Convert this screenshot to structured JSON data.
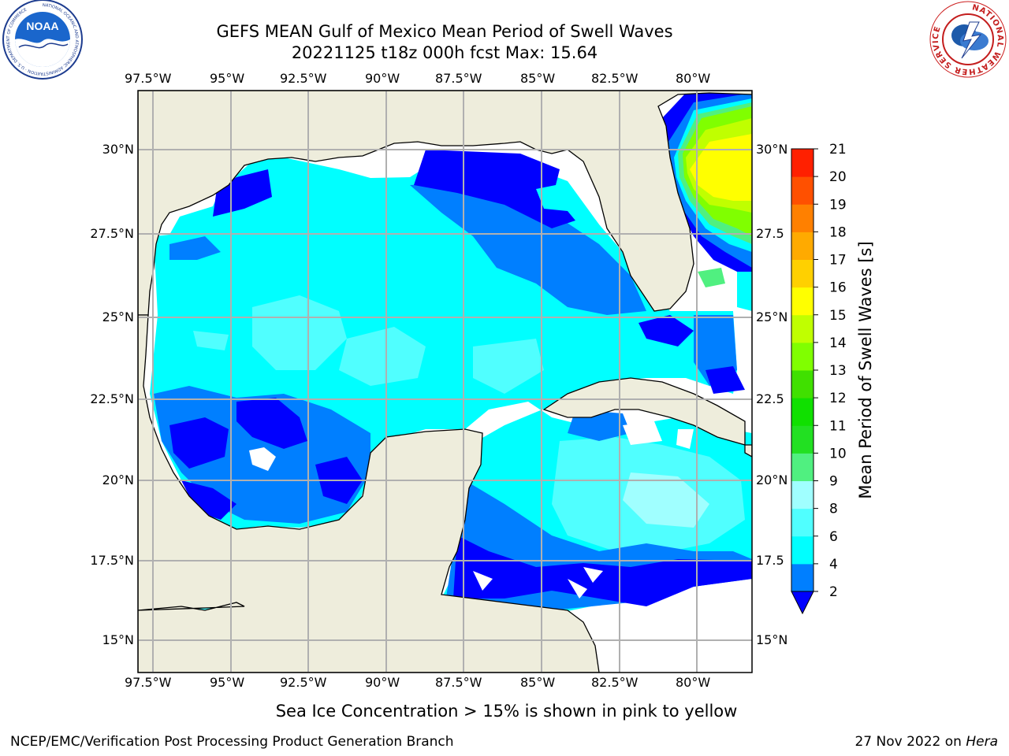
{
  "header": {
    "title_line1": "GEFS MEAN Gulf of Mexico Mean Period of Swell Waves",
    "title_line2": "20221125 t18z 000h fcst   Max: 15.64"
  },
  "logos": {
    "left": "NOAA",
    "left_ring_text": "NATIONAL OCEANIC AND ATMOSPHERIC ADMINISTRATION · U.S. DEPARTMENT OF COMMERCE",
    "right_ring_text": "NATIONAL WEATHER SERVICE"
  },
  "map": {
    "lon_labels": [
      "97.5°W",
      "95°W",
      "92.5°W",
      "90°W",
      "87.5°W",
      "85°W",
      "82.5°W",
      "80°W"
    ],
    "lat_labels_left": [
      "30°N",
      "27.5°N",
      "25°N",
      "22.5°N",
      "20°N",
      "17.5°N",
      "15°N"
    ],
    "lat_labels_right": [
      "30°N",
      "27.5",
      "25°N",
      "22.5",
      "20°N",
      "17.5",
      "15°N"
    ],
    "colors": {
      "land": "#eeeddc",
      "open_sea": "#ffffff",
      "grid": "#b0b0b0"
    }
  },
  "colorbar": {
    "label": "Mean Period of Swell Waves [s]",
    "ticks": [
      "2",
      "4",
      "6",
      "8",
      "9",
      "10",
      "11",
      "12",
      "13",
      "14",
      "15",
      "16",
      "17",
      "18",
      "19",
      "20",
      "21"
    ],
    "colors": [
      "#0000ff",
      "#007fff",
      "#00ffff",
      "#50ffff",
      "#a0ffff",
      "#50f080",
      "#22e022",
      "#10e000",
      "#40e000",
      "#80ff00",
      "#c0ff00",
      "#ffff00",
      "#ffd000",
      "#ffaa00",
      "#ff8000",
      "#ff5000",
      "#ff2000",
      "#ff0000"
    ],
    "extend_color": "#0000ff"
  },
  "footer": {
    "note": "Sea Ice Concentration > 15% is shown in pink to yellow",
    "credit": "NCEP/EMC/Verification Post Processing Product Generation Branch",
    "date": "27 Nov 2022 on ",
    "machine": "Hera"
  }
}
